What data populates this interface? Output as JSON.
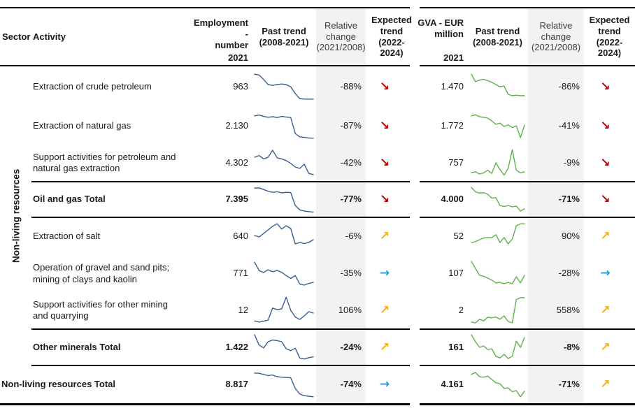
{
  "header": {
    "sector": "Sector",
    "activity": "Activity",
    "employment_lines": [
      "Employment -",
      "number"
    ],
    "employment_year": "2021",
    "past_trend_lines": [
      "Past trend",
      "(2008-2021)"
    ],
    "relative_change_lines": [
      "Relative",
      "change",
      "(2021/2008)"
    ],
    "expected_trend_lines": [
      "Expected",
      "trend",
      "(2022-",
      "2024)"
    ],
    "gva_lines": [
      "GVA - EUR",
      "million"
    ],
    "gva_year": "2021"
  },
  "sector_label": "Non-living resources",
  "icons": {
    "down": "↘",
    "up": "↗",
    "flat": "→"
  },
  "colors": {
    "spark_employment": "#365F91",
    "spark_gva": "#5CB348",
    "arrow_down": "#C00000",
    "arrow_up": "#F9B012",
    "arrow_flat": "#1E9BD7",
    "shading": "#F2F2F2"
  },
  "chart_data": {
    "type": "table",
    "columns": [
      "Sector",
      "Activity",
      "Employment - number 2021",
      "Past trend (2008-2021)",
      "Relative change (2021/2008)",
      "Expected trend (2022-2024)",
      "GVA - EUR million 2021",
      "Past trend (2008-2021)",
      "Relative change (2021/2008)",
      "Expected trend (2022-2024)"
    ],
    "sector": "Non-living resources",
    "spark_x_range": [
      2008,
      2021
    ],
    "rows": [
      {
        "activity": "Extraction of crude petroleum",
        "style": "normal",
        "employment": "963",
        "emp_change": "-88%",
        "emp_arrow": "down",
        "gva": "1.470",
        "gva_change": "-86%",
        "gva_arrow": "down",
        "emp_spark": [
          97,
          94,
          78,
          60,
          57,
          60,
          62,
          60,
          52,
          28,
          10,
          8,
          8,
          8
        ],
        "gva_spark": [
          97,
          70,
          76,
          79,
          74,
          68,
          60,
          52,
          55,
          25,
          20,
          22,
          20,
          20
        ]
      },
      {
        "activity": "Extraction of natural gas",
        "style": "normal",
        "employment": "2.130",
        "emp_change": "-87%",
        "emp_arrow": "down",
        "gva": "1.772",
        "gva_change": "-41%",
        "gva_arrow": "down",
        "emp_spark": [
          88,
          91,
          86,
          83,
          85,
          82,
          86,
          84,
          82,
          25,
          13,
          11,
          9,
          8
        ],
        "gva_spark": [
          88,
          92,
          85,
          83,
          80,
          70,
          58,
          62,
          50,
          56,
          46,
          52,
          10,
          55
        ]
      },
      {
        "activity": "Support activities for petroleum and natural gas extraction",
        "style": "normal",
        "employment": "4.302",
        "emp_change": "-42%",
        "emp_arrow": "down",
        "gva": "757",
        "gva_change": "-9%",
        "gva_arrow": "down",
        "emp_spark": [
          70,
          76,
          64,
          70,
          95,
          68,
          64,
          58,
          48,
          35,
          30,
          45,
          12,
          8
        ],
        "gva_spark": [
          15,
          18,
          10,
          14,
          24,
          12,
          50,
          26,
          6,
          30,
          97,
          24,
          14,
          18
        ]
      },
      {
        "activity": "Oil and gas Total",
        "style": "total",
        "employment": "7.395",
        "emp_change": "-77%",
        "emp_arrow": "down",
        "gva": "4.000",
        "gva_change": "-71%",
        "gva_arrow": "down",
        "emp_spark": [
          92,
          93,
          87,
          81,
          77,
          79,
          75,
          77,
          76,
          30,
          14,
          10,
          8,
          6
        ],
        "gva_spark": [
          95,
          79,
          74,
          76,
          70,
          56,
          58,
          30,
          26,
          30,
          25,
          28,
          10,
          18
        ]
      },
      {
        "activity": "Extraction of salt",
        "style": "normal",
        "employment": "640",
        "emp_change": "-6%",
        "emp_arrow": "up",
        "gva": "52",
        "gva_change": "90%",
        "gva_arrow": "up",
        "emp_spark": [
          55,
          50,
          62,
          75,
          88,
          97,
          78,
          90,
          80,
          25,
          30,
          26,
          30,
          40
        ],
        "gva_spark": [
          30,
          33,
          40,
          46,
          48,
          47,
          58,
          30,
          48,
          25,
          42,
          90,
          97,
          97
        ]
      },
      {
        "activity": "Operation of gravel and sand pits; mining of clays and kaolin",
        "style": "normal",
        "employment": "771",
        "emp_change": "-35%",
        "emp_arrow": "flat",
        "gva": "107",
        "gva_change": "-28%",
        "gva_arrow": "flat",
        "emp_spark": [
          92,
          62,
          55,
          65,
          58,
          62,
          56,
          44,
          34,
          44,
          14,
          10,
          16,
          20
        ],
        "gva_spark": [
          95,
          70,
          45,
          42,
          35,
          28,
          18,
          20,
          15,
          20,
          15,
          40,
          18,
          45
        ]
      },
      {
        "activity": "Support activities for other mining and quarrying",
        "style": "normal",
        "employment": "12",
        "emp_change": "106%",
        "emp_arrow": "up",
        "gva": "2",
        "gva_change": "558%",
        "gva_arrow": "up",
        "emp_spark": [
          12,
          8,
          11,
          15,
          58,
          52,
          55,
          97,
          50,
          26,
          17,
          30,
          45,
          40
        ],
        "gva_spark": [
          8,
          5,
          18,
          12,
          25,
          23,
          26,
          18,
          30,
          10,
          5,
          88,
          95,
          95
        ]
      },
      {
        "activity": "Other minerals Total",
        "style": "total",
        "employment": "1.422",
        "emp_change": "-24%",
        "emp_arrow": "up",
        "gva": "161",
        "gva_change": "-8%",
        "gva_arrow": "up",
        "emp_spark": [
          95,
          58,
          48,
          70,
          76,
          74,
          70,
          45,
          38,
          47,
          12,
          8,
          13,
          16
        ],
        "gva_spark": [
          95,
          70,
          50,
          55,
          42,
          45,
          18,
          12,
          25,
          10,
          18,
          72,
          50,
          85
        ]
      },
      {
        "activity": "Non-living resources Total",
        "style": "grand",
        "employment": "8.817",
        "emp_change": "-74%",
        "emp_arrow": "flat",
        "gva": "4.161",
        "gva_change": "-71%",
        "gva_arrow": "up",
        "emp_spark": [
          93,
          92,
          88,
          84,
          86,
          80,
          78,
          77,
          76,
          38,
          18,
          12,
          10,
          8
        ],
        "gva_spark": [
          88,
          95,
          80,
          78,
          82,
          70,
          58,
          55,
          38,
          40,
          26,
          30,
          8,
          28
        ]
      }
    ]
  }
}
